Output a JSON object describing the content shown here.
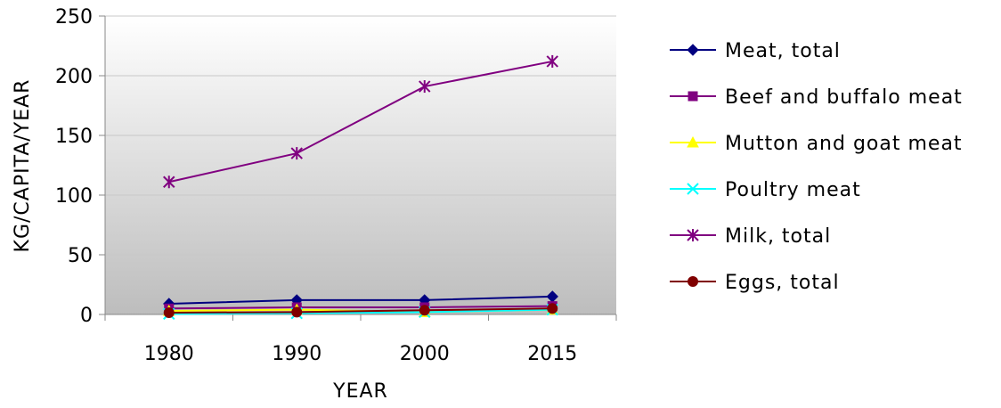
{
  "chart_data": {
    "type": "line",
    "categories": [
      "1980",
      "1990",
      "2000",
      "2015"
    ],
    "xlabel": "YEAR",
    "ylabel": "KG/CAPITA/YEAR",
    "ylim": [
      0,
      250
    ],
    "yticks": [
      "0",
      "50",
      "100",
      "150",
      "200",
      "250"
    ],
    "grid": true,
    "legend_position": "right",
    "plot_background": "gradient white-to-gray",
    "series": [
      {
        "name": "Meat, total",
        "values": [
          9,
          12,
          12,
          15
        ],
        "color": "#000080",
        "marker": "diamond"
      },
      {
        "name": "Beef and buffalo meat",
        "values": [
          5,
          6,
          6,
          7
        ],
        "color": "#800080",
        "marker": "square"
      },
      {
        "name": "Mutton and goat meat",
        "values": [
          3,
          4,
          2,
          4
        ],
        "color": "#FFFF00",
        "marker": "triangle"
      },
      {
        "name": "Poultry meat",
        "values": [
          0.5,
          1,
          2,
          4
        ],
        "color": "#00FFFF",
        "marker": "x"
      },
      {
        "name": "Milk, total",
        "values": [
          111,
          135,
          191,
          212
        ],
        "color": "#800080",
        "marker": "star"
      },
      {
        "name": "Eggs, total",
        "values": [
          1.5,
          2,
          3.5,
          5
        ],
        "color": "#800000",
        "marker": "circle"
      }
    ]
  }
}
